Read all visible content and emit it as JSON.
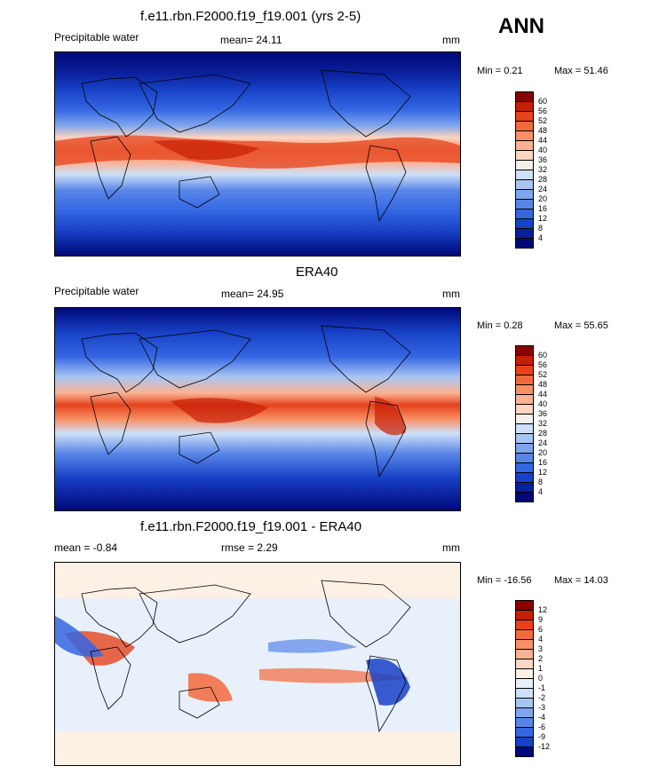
{
  "season_label": "ANN",
  "panels": [
    {
      "id": "model",
      "title": "f.e11.rbn.F2000.f19_f19.001 (yrs 2-5)",
      "left_label": "Precipitable water",
      "center_label": "mean=  24.11",
      "right_label": "mm",
      "min_label": "Min =   0.21",
      "max_label": "Max =   51.46",
      "colorbar_labels": [
        "60",
        "56",
        "52",
        "48",
        "44",
        "40",
        "36",
        "32",
        "28",
        "24",
        "20",
        "16",
        "12",
        "8",
        "4"
      ],
      "palette": [
        "#8b0000",
        "#c81e06",
        "#e4431d",
        "#f26a3c",
        "#f99065",
        "#fbb294",
        "#fed5c0",
        "#f6efeb",
        "#cde0f8",
        "#a7c5f4",
        "#7ea6ee",
        "#5886e8",
        "#3466e2",
        "#1741c6",
        "#0a1f9a",
        "#00087a"
      ]
    },
    {
      "id": "obs",
      "title": "ERA40",
      "left_label": "Precipitable water",
      "center_label": "mean=  24.95",
      "right_label": "mm",
      "min_label": "Min =   0.28",
      "max_label": "Max =   55.65",
      "colorbar_labels": [
        "60",
        "56",
        "52",
        "48",
        "44",
        "40",
        "36",
        "32",
        "28",
        "24",
        "20",
        "16",
        "12",
        "8",
        "4"
      ],
      "palette": [
        "#8b0000",
        "#c81e06",
        "#e4431d",
        "#f26a3c",
        "#f99065",
        "#fbb294",
        "#fed5c0",
        "#f6efeb",
        "#cde0f8",
        "#a7c5f4",
        "#7ea6ee",
        "#5886e8",
        "#3466e2",
        "#1741c6",
        "#0a1f9a",
        "#00087a"
      ]
    },
    {
      "id": "diff",
      "title": "f.e11.rbn.F2000.f19_f19.001 - ERA40",
      "left_label": "mean =  -0.84",
      "center_label": "rmse =    2.29",
      "right_label": "mm",
      "min_label": "Min = -16.56",
      "max_label": "Max =   14.03",
      "colorbar_labels": [
        "12",
        "9",
        "6",
        "4",
        "3",
        "2",
        "1",
        "0",
        "-1",
        "-2",
        "-3",
        "-4",
        "-6",
        "-9",
        "-12"
      ],
      "palette": [
        "#8b0000",
        "#c81e06",
        "#e4431d",
        "#f26a3c",
        "#f99065",
        "#fbb294",
        "#fdd9c6",
        "#fdf1e6",
        "#e8f0fb",
        "#cde0f8",
        "#a7c5f4",
        "#7ea6ee",
        "#5886e8",
        "#3466e2",
        "#1741c6",
        "#00087a"
      ]
    }
  ]
}
